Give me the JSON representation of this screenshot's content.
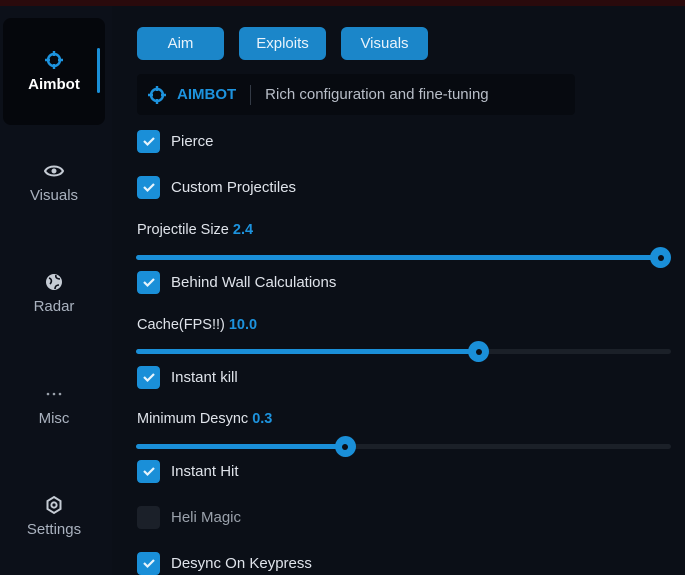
{
  "sidebar": {
    "items": [
      {
        "label": "Aimbot",
        "icon": "crosshair-icon",
        "active": true
      },
      {
        "label": "Visuals",
        "icon": "eye-icon"
      },
      {
        "label": "Radar",
        "icon": "globe-icon"
      },
      {
        "label": "Misc",
        "icon": "ellipsis-icon"
      },
      {
        "label": "Settings",
        "icon": "gear-icon"
      }
    ]
  },
  "tabs": [
    "Aim",
    "Exploits",
    "Visuals"
  ],
  "header": {
    "title": "AIMBOT",
    "description": "Rich configuration and fine-tuning"
  },
  "options": {
    "pierce": {
      "label": "Pierce",
      "checked": true
    },
    "custom_projectiles": {
      "label": "Custom Projectiles",
      "checked": true
    },
    "projectile_size": {
      "label": "Projectile Size",
      "value": "2.4",
      "fill": 0.98
    },
    "behind_wall": {
      "label": "Behind Wall Calculations",
      "checked": true
    },
    "cache": {
      "label": "Cache(FPS!!)",
      "value": "10.0",
      "fill": 0.64
    },
    "instant_kill": {
      "label": "Instant kill",
      "checked": true
    },
    "min_desync": {
      "label": "Minimum Desync",
      "value": "0.3",
      "fill": 0.39
    },
    "instant_hit": {
      "label": "Instant Hit",
      "checked": true
    },
    "heli_magic": {
      "label": "Heli Magic",
      "checked": false
    },
    "desync_keypress": {
      "label": "Desync On Keypress",
      "checked": true
    }
  },
  "colors": {
    "accent": "#1a8fd8",
    "background": "#0b0f17"
  }
}
